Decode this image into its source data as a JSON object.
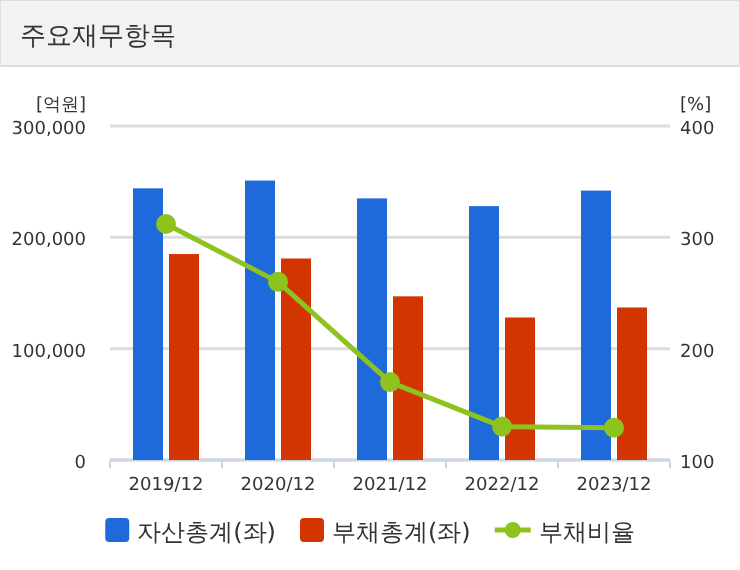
{
  "chart_data": {
    "type": "bar",
    "title": "주요재무항목",
    "ylabel": "[억원]",
    "y2label": "[%]",
    "categories": [
      "2019/12",
      "2020/12",
      "2021/12",
      "2022/12",
      "2023/12"
    ],
    "series": [
      {
        "name": "자산총계(좌)",
        "color": "#1f6adb",
        "values": [
          244000,
          251000,
          235000,
          228000,
          242000
        ]
      },
      {
        "name": "부채총계(좌)",
        "color": "#d33500",
        "values": [
          185000,
          181000,
          147000,
          128000,
          137000
        ]
      },
      {
        "name": "부채비율",
        "type": "line",
        "axis": "y2",
        "color": "#8dc21f",
        "marker": "circle",
        "values": [
          312,
          260,
          170,
          130,
          129
        ]
      }
    ],
    "ylim": [
      0,
      300000
    ],
    "yticks": [
      {
        "value": 0,
        "label": "0"
      },
      {
        "value": 100000,
        "label": "100,000"
      },
      {
        "value": 200000,
        "label": "200,000"
      },
      {
        "value": 300000,
        "label": "300,000"
      }
    ],
    "y2lim": [
      100,
      400
    ],
    "y2ticks": [
      100,
      200,
      300,
      400
    ],
    "grid": "y",
    "legend": "bottom"
  }
}
